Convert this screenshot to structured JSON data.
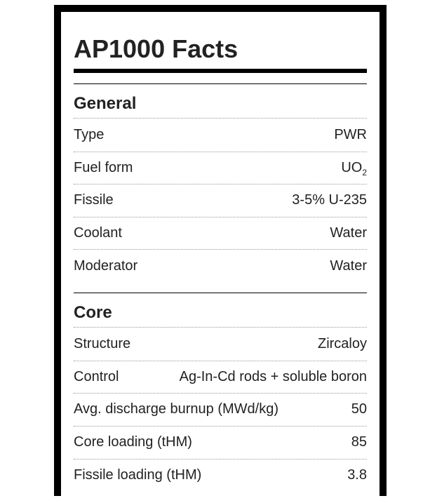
{
  "title": "AP1000 Facts",
  "sections": [
    {
      "heading": "General",
      "rows": [
        {
          "label": "Type",
          "value": "PWR"
        },
        {
          "label": "Fuel form",
          "value": "UO",
          "value_sub": "2"
        },
        {
          "label": "Fissile",
          "value": "3-5% U-235"
        },
        {
          "label": "Coolant",
          "value": "Water"
        },
        {
          "label": "Moderator",
          "value": "Water"
        }
      ]
    },
    {
      "heading": "Core",
      "rows": [
        {
          "label": "Structure",
          "value": "Zircaloy"
        },
        {
          "label": "Control",
          "value": "Ag-In-Cd rods + soluble boron"
        },
        {
          "label": "Avg. discharge burnup (MWd/kg)",
          "value": "50"
        },
        {
          "label": "Core loading (tHM)",
          "value": "85"
        },
        {
          "label": "Fissile loading (tHM)",
          "value": "3.8"
        }
      ]
    }
  ]
}
